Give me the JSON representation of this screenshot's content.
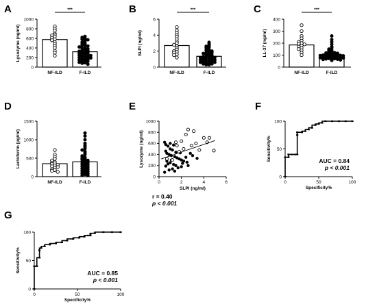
{
  "chart_data": [
    {
      "id": "A",
      "type": "bar",
      "panel_label": "A",
      "categories": [
        "NF-ILD",
        "F-ILD"
      ],
      "values": [
        575,
        320
      ],
      "ylabel": "Lysozyme (ng/ml)",
      "ylim": [
        0,
        1000
      ],
      "yticks": [
        0,
        200,
        400,
        600,
        800,
        1000
      ],
      "significance": "***",
      "points": [
        [
          850,
          800,
          760,
          700,
          680,
          660,
          640,
          610,
          580,
          560,
          520,
          480,
          440,
          400,
          340,
          300,
          240
        ],
        [
          640,
          620,
          600,
          580,
          570,
          550,
          520,
          500,
          480,
          460,
          450,
          440,
          420,
          400,
          390,
          380,
          360,
          350,
          340,
          330,
          320,
          310,
          300,
          290,
          280,
          270,
          260,
          250,
          240,
          230,
          220,
          210,
          200,
          190,
          180,
          170,
          160,
          150,
          140,
          130,
          120,
          100,
          90,
          80,
          60
        ]
      ]
    },
    {
      "id": "B",
      "type": "bar",
      "panel_label": "B",
      "categories": [
        "NF-ILD",
        "F-ILD"
      ],
      "values": [
        2.7,
        1.35
      ],
      "ylabel": "SLPI (ng/ml)",
      "ylim": [
        0,
        6
      ],
      "yticks": [
        0,
        2,
        4,
        6
      ],
      "significance": "***",
      "points": [
        [
          5.0,
          4.6,
          4.3,
          4.0,
          3.8,
          3.5,
          3.2,
          3.0,
          2.8,
          2.6,
          2.4,
          2.2,
          2.0,
          1.9,
          1.8,
          1.6,
          1.5,
          1.2
        ],
        [
          3.1,
          2.9,
          2.7,
          2.6,
          2.5,
          2.4,
          2.2,
          2.1,
          2.0,
          1.9,
          1.8,
          1.8,
          1.7,
          1.6,
          1.5,
          1.5,
          1.4,
          1.4,
          1.3,
          1.3,
          1.2,
          1.2,
          1.1,
          1.1,
          1.0,
          1.0,
          0.9,
          0.9,
          0.8,
          0.8,
          0.7,
          0.7,
          0.6,
          0.6,
          0.5,
          0.5,
          0.4,
          0.4,
          0.3,
          0.3
        ]
      ]
    },
    {
      "id": "C",
      "type": "bar",
      "panel_label": "C",
      "categories": [
        "NF-ILD",
        "F-ILD"
      ],
      "values": [
        185,
        100
      ],
      "ylabel": "LL-37 (ng/ml)",
      "ylim": [
        0,
        400
      ],
      "yticks": [
        0,
        100,
        200,
        300,
        400
      ],
      "significance": "***",
      "points": [
        [
          350,
          300,
          260,
          240,
          220,
          210,
          200,
          195,
          190,
          180,
          170,
          160,
          150,
          140,
          120,
          100
        ],
        [
          260,
          230,
          210,
          190,
          170,
          160,
          150,
          140,
          135,
          130,
          125,
          120,
          118,
          115,
          112,
          110,
          108,
          105,
          102,
          100,
          98,
          96,
          94,
          92,
          90,
          88,
          86,
          84,
          82,
          80,
          78,
          76,
          74,
          72,
          70,
          68,
          66,
          64,
          60,
          56
        ]
      ]
    },
    {
      "id": "D",
      "type": "bar",
      "panel_label": "D",
      "categories": [
        "NF-ILD",
        "F-ILD"
      ],
      "values": [
        350,
        400
      ],
      "ylabel": "Lactoferrin (pg/ml)",
      "ylim": [
        0,
        1500
      ],
      "yticks": [
        0,
        500,
        1000,
        1500
      ],
      "points": [
        [
          720,
          600,
          540,
          480,
          440,
          400,
          380,
          360,
          340,
          320,
          300,
          280,
          260,
          240,
          200,
          180,
          160,
          130
        ],
        [
          1180,
          1100,
          1000,
          900,
          850,
          800,
          760,
          720,
          680,
          640,
          600,
          560,
          520,
          500,
          480,
          460,
          440,
          420,
          400,
          380,
          360,
          340,
          320,
          300,
          280,
          260,
          240,
          220,
          200,
          180,
          160,
          140,
          120,
          100,
          80,
          60,
          40,
          30
        ]
      ]
    },
    {
      "id": "E",
      "type": "scatter",
      "panel_label": "E",
      "xlabel": "SLPI (ng/ml)",
      "ylabel": "Lysozyme (ng/ml)",
      "xlim": [
        0,
        6
      ],
      "ylim": [
        0,
        1000
      ],
      "xticks": [
        0,
        2,
        4,
        6
      ],
      "yticks": [
        0,
        200,
        400,
        600,
        800,
        1000
      ],
      "open_points": [
        [
          2.6,
          850
        ],
        [
          3.1,
          820
        ],
        [
          4.0,
          700
        ],
        [
          4.5,
          700
        ],
        [
          2.0,
          640
        ],
        [
          1.6,
          560
        ],
        [
          3.3,
          600
        ],
        [
          4.9,
          470
        ],
        [
          2.9,
          560
        ],
        [
          1.5,
          620
        ],
        [
          2.4,
          760
        ],
        [
          1.8,
          450
        ],
        [
          3.6,
          480
        ],
        [
          4.3,
          620
        ],
        [
          2.2,
          500
        ],
        [
          1.2,
          300
        ],
        [
          0.7,
          320
        ]
      ],
      "closed_points": [
        [
          0.5,
          620
        ],
        [
          0.6,
          580
        ],
        [
          0.8,
          550
        ],
        [
          1.0,
          500
        ],
        [
          1.2,
          480
        ],
        [
          0.7,
          420
        ],
        [
          0.9,
          400
        ],
        [
          1.1,
          380
        ],
        [
          1.4,
          360
        ],
        [
          1.6,
          340
        ],
        [
          1.8,
          320
        ],
        [
          2.0,
          300
        ],
        [
          2.2,
          280
        ],
        [
          2.5,
          260
        ],
        [
          1.0,
          250
        ],
        [
          0.8,
          230
        ],
        [
          1.3,
          220
        ],
        [
          1.5,
          200
        ],
        [
          0.6,
          190
        ],
        [
          2.0,
          180
        ],
        [
          1.7,
          160
        ],
        [
          1.2,
          140
        ],
        [
          0.9,
          120
        ],
        [
          2.4,
          350
        ],
        [
          2.8,
          420
        ],
        [
          3.0,
          380
        ],
        [
          1.9,
          430
        ],
        [
          1.5,
          440
        ],
        [
          0.7,
          280
        ],
        [
          1.1,
          300
        ],
        [
          2.6,
          200
        ],
        [
          1.4,
          100
        ],
        [
          0.5,
          80
        ],
        [
          3.4,
          330
        ],
        [
          2.1,
          240
        ],
        [
          1.0,
          600
        ],
        [
          1.3,
          570
        ],
        [
          0.6,
          460
        ]
      ],
      "fit_line": [
        [
          0.2,
          320
        ],
        [
          5.0,
          650
        ]
      ],
      "annotation": {
        "r": "r = 0.40",
        "p": "p < 0.001"
      }
    },
    {
      "id": "F",
      "type": "line",
      "panel_label": "F",
      "xlabel": "Specificity%",
      "ylabel": "Sensitivity%",
      "xlim": [
        0,
        100
      ],
      "ylim": [
        0,
        100
      ],
      "xticks": [
        0,
        50,
        100
      ],
      "yticks": [
        0,
        50,
        100
      ],
      "roc": [
        [
          0,
          0
        ],
        [
          0,
          35
        ],
        [
          5,
          35
        ],
        [
          5,
          40
        ],
        [
          10,
          40
        ],
        [
          15,
          40
        ],
        [
          18,
          40
        ],
        [
          18,
          75
        ],
        [
          18,
          80
        ],
        [
          25,
          80
        ],
        [
          30,
          82
        ],
        [
          35,
          85
        ],
        [
          40,
          88
        ],
        [
          45,
          93
        ],
        [
          50,
          95
        ],
        [
          55,
          97
        ],
        [
          60,
          100
        ],
        [
          70,
          100
        ],
        [
          80,
          100
        ],
        [
          90,
          100
        ],
        [
          100,
          100
        ]
      ],
      "annotation": {
        "auc": "AUC = 0.84",
        "p": "p < 0.001"
      }
    },
    {
      "id": "G",
      "type": "line",
      "panel_label": "G",
      "xlabel": "Specificity%",
      "ylabel": "Sensitivity%",
      "xlim": [
        0,
        100
      ],
      "ylim": [
        0,
        100
      ],
      "xticks": [
        0,
        50,
        100
      ],
      "yticks": [
        0,
        50,
        100
      ],
      "roc": [
        [
          0,
          0
        ],
        [
          0,
          40
        ],
        [
          3,
          40
        ],
        [
          6,
          55
        ],
        [
          6,
          68
        ],
        [
          8,
          72
        ],
        [
          12,
          75
        ],
        [
          18,
          78
        ],
        [
          25,
          80
        ],
        [
          32,
          82
        ],
        [
          38,
          85
        ],
        [
          45,
          88
        ],
        [
          52,
          90
        ],
        [
          58,
          92
        ],
        [
          62,
          94
        ],
        [
          65,
          94
        ],
        [
          65,
          97
        ],
        [
          70,
          98
        ],
        [
          80,
          100
        ],
        [
          90,
          100
        ],
        [
          100,
          100
        ]
      ],
      "annotation": {
        "auc": "AUC = 0.85",
        "p": "p < 0.001"
      }
    }
  ]
}
